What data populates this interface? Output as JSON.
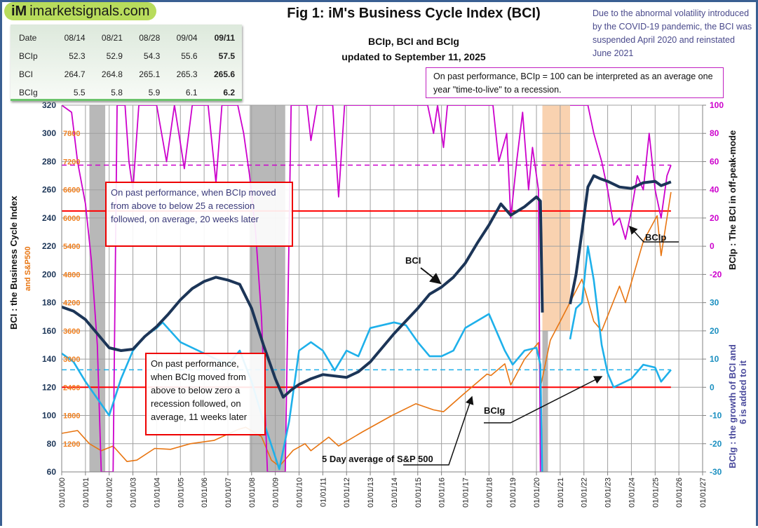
{
  "logo": {
    "text": "imarketsignals.com",
    "mark": "iM"
  },
  "table": {
    "header": [
      "Date",
      "08/14",
      "08/21",
      "08/28",
      "09/04",
      "09/11"
    ],
    "rows": [
      [
        "BCIp",
        "52.3",
        "52.9",
        "54.3",
        "55.6",
        "57.5"
      ],
      [
        "BCI",
        "264.7",
        "264.8",
        "265.1",
        "265.3",
        "265.6"
      ],
      [
        "BCIg",
        "5.5",
        "5.8",
        "5.9",
        "6.1",
        "6.2"
      ]
    ]
  },
  "title": "Fig 1:  iM's Business Cycle Index (BCI)",
  "subtitle1": "BCIp, BCI and BCIg",
  "subtitle2": "updated to September 11, 2025",
  "covid_note": "Due to the abnormal volatility introduced by the COVID-19 pandemic, the BCI was suspended April 2020 and reinstated June 2021",
  "bcip_note": "On past performance, BCIp = 100  can be interpreted as an average one year \"time-to-live\" to a recession.",
  "bcip_box": "On past performance,  when BCIp moved from above to below 25 a recession followed, on average, 20 weeks later",
  "bcig_box": "On past performance, when BCIg moved from above to below zero a recession followed, on average, 11 weeks later",
  "labels": {
    "bci": "BCI",
    "bcip": "BCIp",
    "bcig": "BCIg",
    "sp_prefix": "5 Day average of ",
    "sp": "S&P 500"
  },
  "chart_data": {
    "type": "line",
    "ylabel_left": "BCI : the Business  Cycle  Index",
    "ylabel_left2": "and   S&P500",
    "ylabel_right1": "BCIp :  The BCI in off-peak-mode",
    "ylabel_right2a": "BCIg :  the growth of BCI and",
    "ylabel_right2b": "6 is added to it",
    "xlim": [
      "2000-01",
      "2027-01"
    ],
    "x_ticks": [
      "01/01/00",
      "01/01/01",
      "01/01/02",
      "01/01/03",
      "01/01/04",
      "01/01/05",
      "01/01/06",
      "01/01/07",
      "01/01/08",
      "01/01/09",
      "01/01/10",
      "01/01/11",
      "01/01/12",
      "01/01/13",
      "01/01/14",
      "01/01/15",
      "01/01/16",
      "01/01/17",
      "01/01/18",
      "01/01/19",
      "01/01/20",
      "01/01/21",
      "01/01/22",
      "01/01/23",
      "01/01/24",
      "01/01/25",
      "01/01/26",
      "01/01/27"
    ],
    "y_left": {
      "ylim": [
        60,
        320
      ],
      "ticks": [
        "320",
        "300",
        "280",
        "260",
        "240",
        "220",
        "200",
        "180",
        "160",
        "140",
        "120",
        "100",
        "80",
        "60"
      ]
    },
    "y_sp500": {
      "ticks": [
        "7800",
        "7200",
        "6600",
        "6000",
        "5400",
        "4800",
        "4200",
        "3600",
        "3000",
        "2400",
        "1800",
        "1200"
      ]
    },
    "y_bcip": {
      "ticks": [
        "100",
        "80",
        "60",
        "40",
        "20",
        "0",
        "-20"
      ]
    },
    "y_bcig": {
      "ticks": [
        "30",
        "20",
        "10",
        "0",
        "-10",
        "-20",
        "-30"
      ]
    },
    "grid": true,
    "colors": {
      "bci": "#1c3557",
      "bcip": "#cc00cc",
      "bcig": "#1eb0ea",
      "sp500": "#e87511",
      "red": "#ff0000",
      "recession": "#b8b8b8",
      "covid": "#f9d2b0",
      "axis_left": "#1c3557",
      "axis_bcip": "#cc00cc",
      "axis_bcig": "#1a8fc0",
      "sp_axis": "#f08020"
    },
    "shaded_periods": [
      {
        "from": "2001-03",
        "to": "2001-11",
        "kind": "recession"
      },
      {
        "from": "2007-12",
        "to": "2009-06",
        "kind": "recession"
      },
      {
        "from": "2020-04",
        "to": "2021-06",
        "kind": "covid"
      }
    ],
    "threshold_lines": {
      "bcip_red": 25,
      "bcig_red": 0,
      "bcip_dashed": 57.5,
      "bcig_dashed": 6.2
    },
    "series": [
      {
        "name": "BCI",
        "axis": "left",
        "values": [
          [
            "2000-01",
            177
          ],
          [
            "2000-07",
            174
          ],
          [
            "2001-01",
            168
          ],
          [
            "2001-07",
            158
          ],
          [
            "2002-01",
            148
          ],
          [
            "2002-07",
            146
          ],
          [
            "2003-01",
            147
          ],
          [
            "2003-07",
            156
          ],
          [
            "2004-01",
            163
          ],
          [
            "2004-07",
            172
          ],
          [
            "2005-01",
            182
          ],
          [
            "2005-07",
            190
          ],
          [
            "2006-01",
            195
          ],
          [
            "2006-07",
            198
          ],
          [
            "2007-01",
            196
          ],
          [
            "2007-07",
            193
          ],
          [
            "2008-01",
            176
          ],
          [
            "2008-07",
            150
          ],
          [
            "2009-01",
            126
          ],
          [
            "2009-05",
            113
          ],
          [
            "2009-09",
            118
          ],
          [
            "2010-01",
            122
          ],
          [
            "2010-07",
            126
          ],
          [
            "2011-01",
            129
          ],
          [
            "2011-07",
            128
          ],
          [
            "2012-01",
            127
          ],
          [
            "2012-07",
            131
          ],
          [
            "2013-01",
            138
          ],
          [
            "2013-07",
            148
          ],
          [
            "2014-01",
            158
          ],
          [
            "2014-07",
            167
          ],
          [
            "2015-01",
            176
          ],
          [
            "2015-07",
            186
          ],
          [
            "2016-01",
            191
          ],
          [
            "2016-07",
            198
          ],
          [
            "2017-01",
            208
          ],
          [
            "2017-07",
            222
          ],
          [
            "2018-01",
            235
          ],
          [
            "2018-07",
            250
          ],
          [
            "2018-12",
            242
          ],
          [
            "2019-07",
            248
          ],
          [
            "2020-01",
            255
          ],
          [
            "2020-03",
            252
          ],
          [
            "2020-04",
            173
          ],
          [
            "gap",
            null
          ],
          [
            "2021-06",
            179
          ],
          [
            "2021-09",
            200
          ],
          [
            "2021-12",
            230
          ],
          [
            "2022-03",
            262
          ],
          [
            "2022-06",
            270
          ],
          [
            "2022-09",
            268
          ],
          [
            "2023-01",
            266
          ],
          [
            "2023-07",
            262
          ],
          [
            "2024-01",
            261
          ],
          [
            "2024-07",
            265
          ],
          [
            "2025-01",
            266
          ],
          [
            "2025-04",
            263
          ],
          [
            "2025-09",
            265.6
          ]
        ]
      },
      {
        "name": "BCIp",
        "axis": "bcip",
        "values": [
          [
            "2000-01",
            100
          ],
          [
            "2000-06",
            95
          ],
          [
            "2000-09",
            60
          ],
          [
            "2000-11",
            45
          ],
          [
            "2001-01",
            30
          ],
          [
            "2001-04",
            -10
          ],
          [
            "2001-07",
            -70
          ],
          [
            "2001-09",
            -160
          ],
          [
            "2002-03",
            -160
          ],
          [
            "2002-05",
            100
          ],
          [
            "2002-09",
            100
          ],
          [
            "2002-11",
            60
          ],
          [
            "2003-01",
            40
          ],
          [
            "2003-04",
            100
          ],
          [
            "2004-01",
            100
          ],
          [
            "2004-06",
            60
          ],
          [
            "2004-10",
            100
          ],
          [
            "2005-03",
            55
          ],
          [
            "2005-07",
            100
          ],
          [
            "2006-03",
            100
          ],
          [
            "2006-07",
            45
          ],
          [
            "2006-10",
            100
          ],
          [
            "2007-06",
            100
          ],
          [
            "2007-09",
            80
          ],
          [
            "2007-12",
            50
          ],
          [
            "2008-03",
            10
          ],
          [
            "2008-06",
            -50
          ],
          [
            "2008-09",
            -160
          ],
          [
            "2009-06",
            -160
          ],
          [
            "2009-09",
            100
          ],
          [
            "2010-05",
            100
          ],
          [
            "2010-07",
            75
          ],
          [
            "2010-10",
            100
          ],
          [
            "2011-06",
            100
          ],
          [
            "2011-09",
            35
          ],
          [
            "2011-12",
            100
          ],
          [
            "2015-06",
            100
          ],
          [
            "2015-09",
            80
          ],
          [
            "2015-11",
            100
          ],
          [
            "2016-02",
            70
          ],
          [
            "2016-04",
            100
          ],
          [
            "2018-03",
            100
          ],
          [
            "2018-06",
            60
          ],
          [
            "2018-10",
            80
          ],
          [
            "2018-12",
            20
          ],
          [
            "2019-03",
            60
          ],
          [
            "2019-06",
            95
          ],
          [
            "2019-09",
            40
          ],
          [
            "2019-11",
            70
          ],
          [
            "2020-02",
            40
          ],
          [
            "2020-03",
            -160
          ],
          [
            "gap",
            null
          ],
          [
            "2021-06",
            100
          ],
          [
            "2022-03",
            100
          ],
          [
            "2022-06",
            80
          ],
          [
            "2022-10",
            60
          ],
          [
            "2023-01",
            40
          ],
          [
            "2023-04",
            15
          ],
          [
            "2023-07",
            20
          ],
          [
            "2023-10",
            5
          ],
          [
            "2024-01",
            25
          ],
          [
            "2024-04",
            50
          ],
          [
            "2024-07",
            40
          ],
          [
            "2024-10",
            80
          ],
          [
            "2025-01",
            40
          ],
          [
            "2025-04",
            20
          ],
          [
            "2025-07",
            50
          ],
          [
            "2025-09",
            57.5
          ]
        ]
      },
      {
        "name": "BCIg",
        "axis": "bcig",
        "values": [
          [
            "2000-01",
            12
          ],
          [
            "2000-07",
            9
          ],
          [
            "2001-01",
            2
          ],
          [
            "2001-07",
            -4
          ],
          [
            "2002-01",
            -10
          ],
          [
            "2002-07",
            3
          ],
          [
            "2003-01",
            13
          ],
          [
            "2003-07",
            18
          ],
          [
            "2004-01",
            21
          ],
          [
            "2004-04",
            23
          ],
          [
            "2005-01",
            16
          ],
          [
            "2006-01",
            12
          ],
          [
            "2007-01",
            8
          ],
          [
            "2007-07",
            13
          ],
          [
            "2008-01",
            2
          ],
          [
            "2008-07",
            -12
          ],
          [
            "2009-03",
            -29
          ],
          [
            "2009-08",
            -12
          ],
          [
            "2010-01",
            13
          ],
          [
            "2010-07",
            16
          ],
          [
            "2011-01",
            13
          ],
          [
            "2011-07",
            6
          ],
          [
            "2012-01",
            13
          ],
          [
            "2012-07",
            11
          ],
          [
            "2013-01",
            21
          ],
          [
            "2014-01",
            23
          ],
          [
            "2014-07",
            22
          ],
          [
            "2015-01",
            16
          ],
          [
            "2015-07",
            11
          ],
          [
            "2016-01",
            11
          ],
          [
            "2016-07",
            13
          ],
          [
            "2017-01",
            21
          ],
          [
            "2018-01",
            26
          ],
          [
            "2018-09",
            13
          ],
          [
            "2019-01",
            8
          ],
          [
            "2019-07",
            13
          ],
          [
            "2020-01",
            14
          ],
          [
            "2020-03",
            8
          ],
          [
            "2020-04",
            -35
          ],
          [
            "gap",
            null
          ],
          [
            "2021-06",
            17
          ],
          [
            "2021-09",
            28
          ],
          [
            "2021-12",
            30
          ],
          [
            "2022-03",
            50
          ],
          [
            "2022-06",
            38
          ],
          [
            "2022-10",
            15
          ],
          [
            "2023-01",
            5
          ],
          [
            "2023-04",
            0
          ],
          [
            "2023-07",
            1
          ],
          [
            "2024-01",
            3
          ],
          [
            "2024-07",
            8
          ],
          [
            "2025-01",
            7
          ],
          [
            "2025-04",
            2
          ],
          [
            "2025-09",
            6.2
          ]
        ]
      },
      {
        "name": "S&P 500",
        "axis": "sp500",
        "values": [
          [
            "2000-01",
            1420
          ],
          [
            "2000-09",
            1480
          ],
          [
            "2001-03",
            1200
          ],
          [
            "2001-09",
            1050
          ],
          [
            "2002-03",
            1150
          ],
          [
            "2002-10",
            820
          ],
          [
            "2003-03",
            850
          ],
          [
            "2003-12",
            1100
          ],
          [
            "2004-08",
            1080
          ],
          [
            "2005-06",
            1200
          ],
          [
            "2006-06",
            1270
          ],
          [
            "2007-06",
            1500
          ],
          [
            "2007-10",
            1550
          ],
          [
            "2008-06",
            1350
          ],
          [
            "2008-11",
            850
          ],
          [
            "2009-03",
            720
          ],
          [
            "2009-10",
            1060
          ],
          [
            "2010-04",
            1200
          ],
          [
            "2010-07",
            1050
          ],
          [
            "2011-04",
            1340
          ],
          [
            "2011-09",
            1150
          ],
          [
            "2012-09",
            1450
          ],
          [
            "2013-12",
            1800
          ],
          [
            "2014-12",
            2050
          ],
          [
            "2015-09",
            1920
          ],
          [
            "2016-02",
            1880
          ],
          [
            "2016-12",
            2250
          ],
          [
            "2017-12",
            2680
          ],
          [
            "2018-02",
            2650
          ],
          [
            "2018-09",
            2900
          ],
          [
            "2018-12",
            2450
          ],
          [
            "2019-07",
            3000
          ],
          [
            "2020-02",
            3350
          ],
          [
            "2020-03",
            2400
          ],
          [
            "2020-08",
            3400
          ],
          [
            "2021-01",
            3800
          ],
          [
            "2021-12",
            4700
          ],
          [
            "2022-06",
            3800
          ],
          [
            "2022-10",
            3600
          ],
          [
            "2023-07",
            4550
          ],
          [
            "2023-10",
            4200
          ],
          [
            "2024-07",
            5500
          ],
          [
            "2025-02",
            6050
          ],
          [
            "2025-04",
            5200
          ],
          [
            "2025-09",
            6550
          ]
        ]
      }
    ]
  }
}
